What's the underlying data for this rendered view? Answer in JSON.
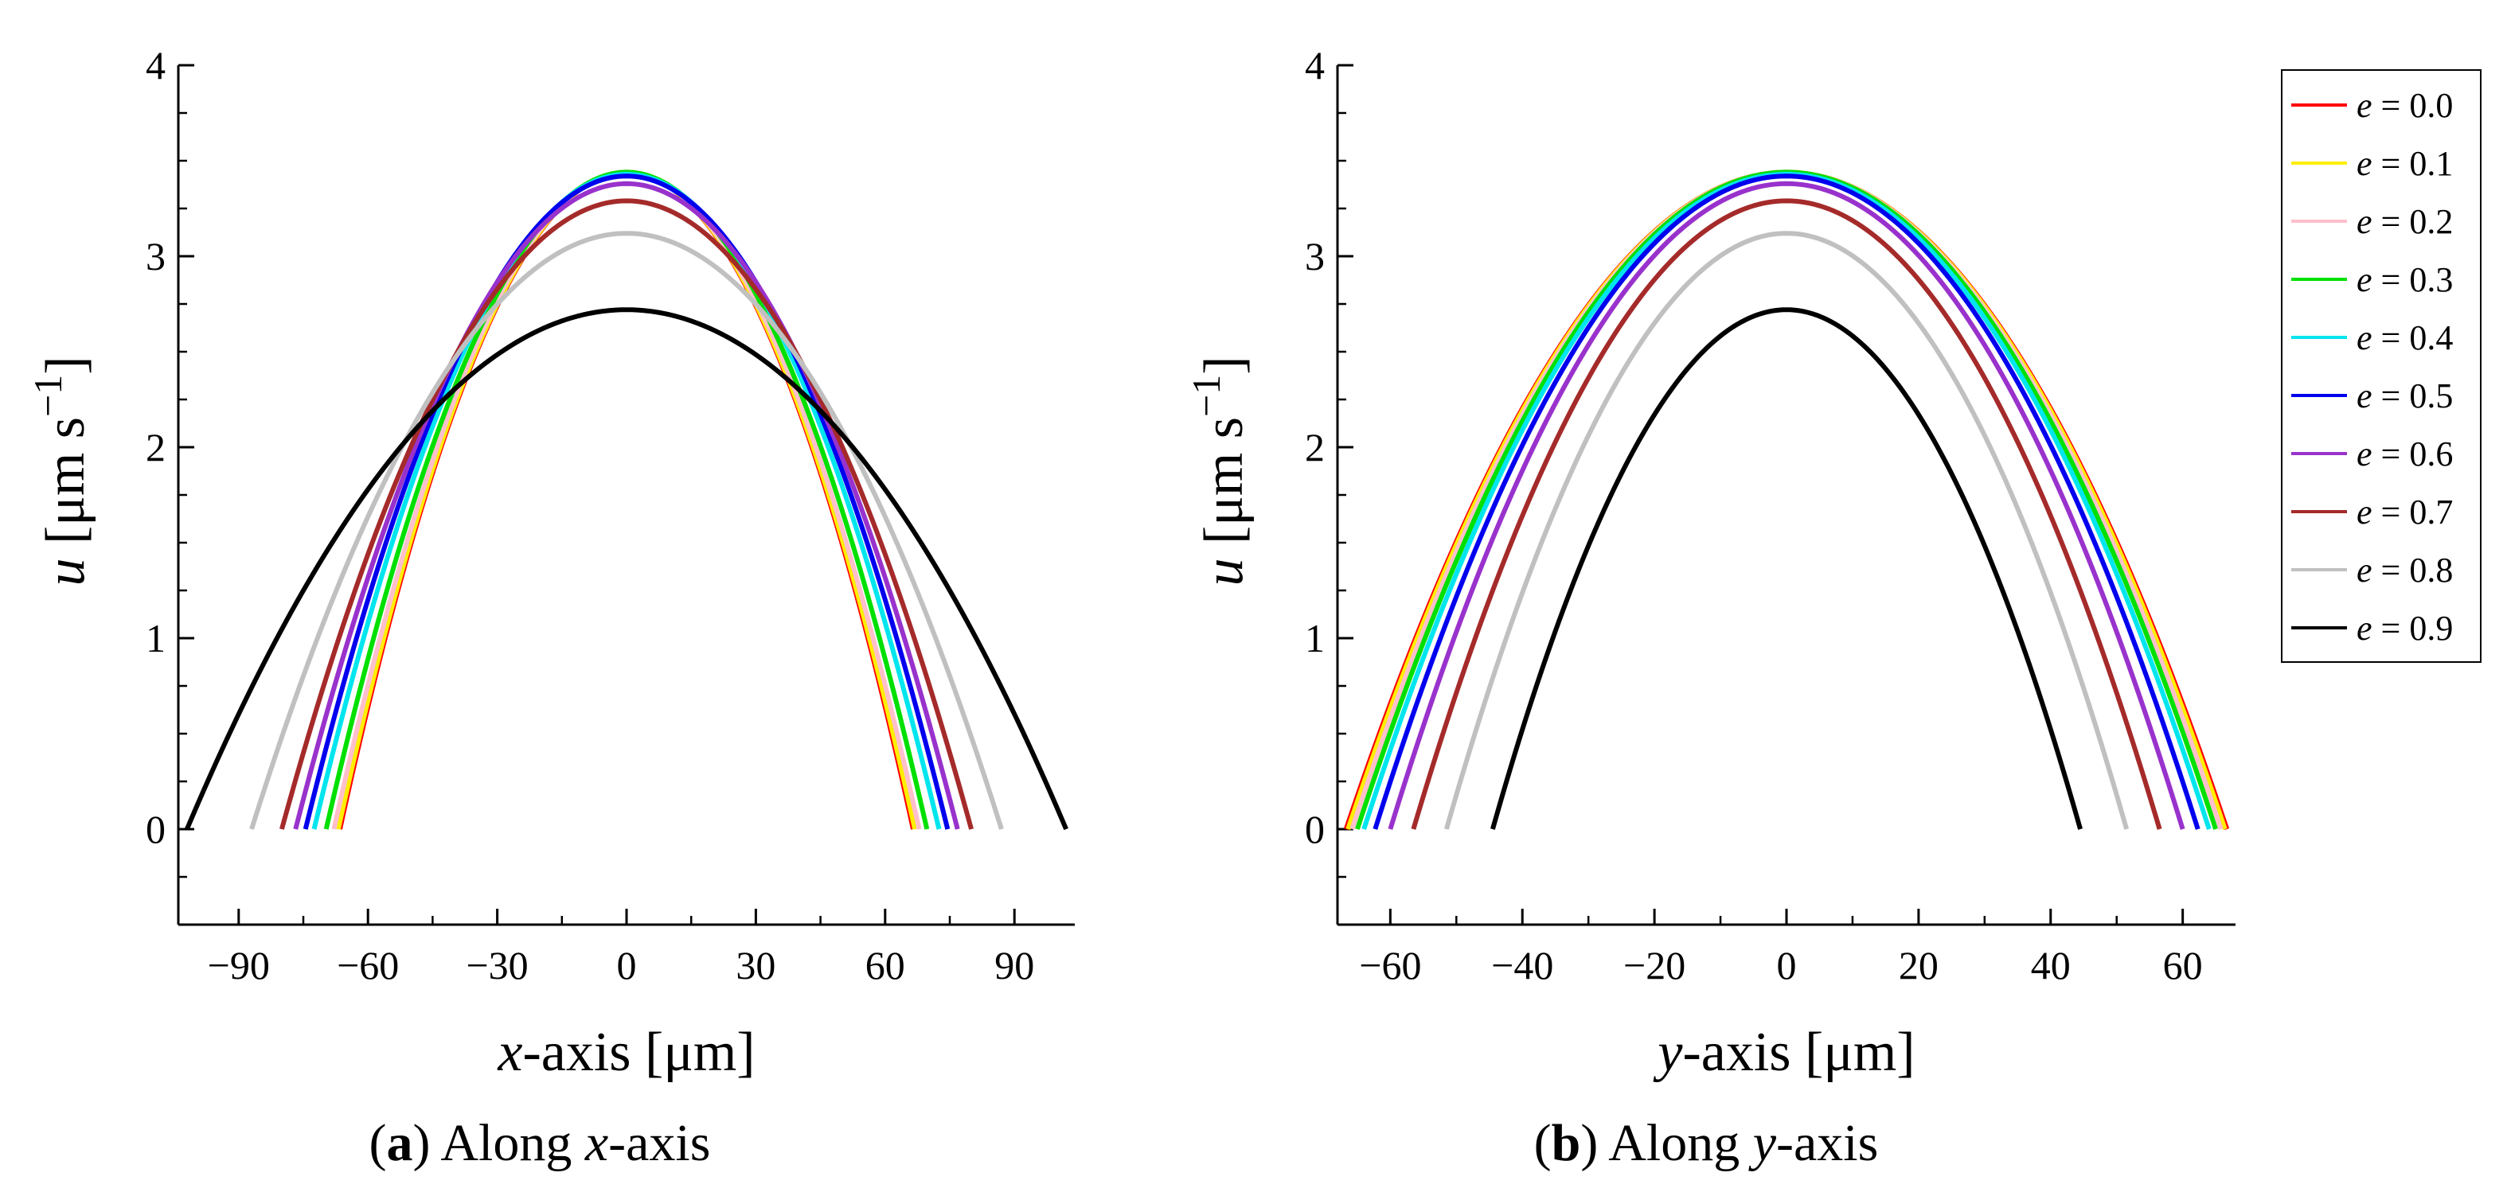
{
  "chart_data": [
    {
      "type": "line",
      "xlabel": {
        "var": "x",
        "rest": "-axis [μm]"
      },
      "ylabel": {
        "var": "u",
        "rest": " [μm s",
        "sup": "−1",
        "close": "]"
      },
      "caption": {
        "open": "(",
        "letter": "a",
        "close": ") Along ",
        "var": "x",
        "rest": "-axis"
      },
      "xlim": [
        -104,
        104
      ],
      "ylim": [
        -0.5,
        4
      ],
      "xticks": [
        -90,
        -60,
        -30,
        0,
        30,
        60,
        90
      ],
      "xtick_labels": [
        "−90",
        "−60",
        "−30",
        "0",
        "30",
        "60",
        "90"
      ],
      "yticks": [
        0,
        1,
        2,
        3,
        4
      ],
      "ytick_labels": [
        "0",
        "1",
        "2",
        "3",
        "4"
      ],
      "series": [
        {
          "name": "e = 0.0",
          "e": 0.0,
          "color": "#ff0000",
          "peak": 3.44,
          "half_width": 66.5
        },
        {
          "name": "e = 0.1",
          "e": 0.1,
          "color": "#ffee00",
          "peak": 3.44,
          "half_width": 66.9
        },
        {
          "name": "e = 0.2",
          "e": 0.2,
          "color": "#ffc0cb",
          "peak": 3.44,
          "half_width": 67.9
        },
        {
          "name": "e = 0.3",
          "e": 0.3,
          "color": "#00e000",
          "peak": 3.44,
          "half_width": 69.7
        },
        {
          "name": "e = 0.4",
          "e": 0.4,
          "color": "#00e5ee",
          "peak": 3.43,
          "half_width": 72.5
        },
        {
          "name": "e = 0.5",
          "e": 0.5,
          "color": "#0000ee",
          "peak": 3.42,
          "half_width": 74.5
        },
        {
          "name": "e = 0.6",
          "e": 0.6,
          "color": "#9932cc",
          "peak": 3.38,
          "half_width": 76.8
        },
        {
          "name": "e = 0.7",
          "e": 0.7,
          "color": "#a52a2a",
          "peak": 3.29,
          "half_width": 80.0
        },
        {
          "name": "e = 0.8",
          "e": 0.8,
          "color": "#c0c0c0",
          "peak": 3.12,
          "half_width": 87.0
        },
        {
          "name": "e = 0.9",
          "e": 0.9,
          "color": "#000000",
          "peak": 2.72,
          "half_width": 102.0
        }
      ]
    },
    {
      "type": "line",
      "xlabel": {
        "var": "y",
        "rest": "-axis [μm]"
      },
      "ylabel": {
        "var": "u",
        "rest": " [μm s",
        "sup": "−1",
        "close": "]"
      },
      "caption": {
        "open": "(",
        "letter": "b",
        "close": ") Along ",
        "var": "y",
        "rest": "-axis"
      },
      "xlim": [
        -68,
        68
      ],
      "ylim": [
        -0.5,
        4
      ],
      "xticks": [
        -60,
        -40,
        -20,
        0,
        20,
        40,
        60
      ],
      "xtick_labels": [
        "−60",
        "−40",
        "−20",
        "0",
        "20",
        "40",
        "60"
      ],
      "yticks": [
        0,
        1,
        2,
        3,
        4
      ],
      "ytick_labels": [
        "0",
        "1",
        "2",
        "3",
        "4"
      ],
      "series": [
        {
          "name": "e = 0.0",
          "e": 0.0,
          "color": "#ff0000",
          "peak": 3.44,
          "half_width": 66.7
        },
        {
          "name": "e = 0.1",
          "e": 0.1,
          "color": "#ffee00",
          "peak": 3.44,
          "half_width": 66.4
        },
        {
          "name": "e = 0.2",
          "e": 0.2,
          "color": "#ffc0cb",
          "peak": 3.44,
          "half_width": 65.8
        },
        {
          "name": "e = 0.3",
          "e": 0.3,
          "color": "#00e000",
          "peak": 3.44,
          "half_width": 65.0
        },
        {
          "name": "e = 0.4",
          "e": 0.4,
          "color": "#00e5ee",
          "peak": 3.43,
          "half_width": 64.0
        },
        {
          "name": "e = 0.5",
          "e": 0.5,
          "color": "#0000ee",
          "peak": 3.42,
          "half_width": 62.3
        },
        {
          "name": "e = 0.6",
          "e": 0.6,
          "color": "#9932cc",
          "peak": 3.38,
          "half_width": 60.0
        },
        {
          "name": "e = 0.7",
          "e": 0.7,
          "color": "#a52a2a",
          "peak": 3.29,
          "half_width": 56.5
        },
        {
          "name": "e = 0.8",
          "e": 0.8,
          "color": "#c0c0c0",
          "peak": 3.12,
          "half_width": 51.5
        },
        {
          "name": "e = 0.9",
          "e": 0.9,
          "color": "#000000",
          "peak": 2.72,
          "half_width": 44.5
        }
      ]
    }
  ],
  "legend": {
    "placement": "right",
    "items": [
      {
        "var": "e",
        "rest": " = 0.0",
        "color": "#ff0000"
      },
      {
        "var": "e",
        "rest": " = 0.1",
        "color": "#ffee00"
      },
      {
        "var": "e",
        "rest": " = 0.2",
        "color": "#ffc0cb"
      },
      {
        "var": "e",
        "rest": " = 0.3",
        "color": "#00e000"
      },
      {
        "var": "e",
        "rest": " = 0.4",
        "color": "#00e5ee"
      },
      {
        "var": "e",
        "rest": " = 0.5",
        "color": "#0000ee"
      },
      {
        "var": "e",
        "rest": " = 0.6",
        "color": "#9932cc"
      },
      {
        "var": "e",
        "rest": " = 0.7",
        "color": "#a52a2a"
      },
      {
        "var": "e",
        "rest": " = 0.8",
        "color": "#c0c0c0"
      },
      {
        "var": "e",
        "rest": " = 0.9",
        "color": "#000000"
      }
    ]
  }
}
